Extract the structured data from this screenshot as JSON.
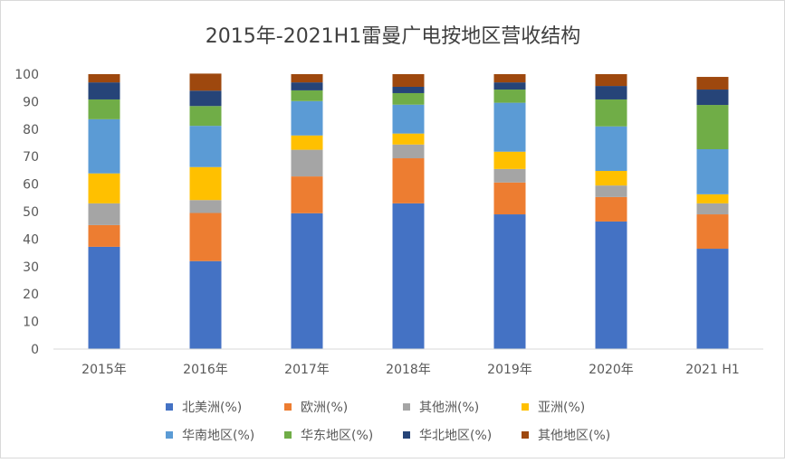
{
  "chart_data": {
    "type": "bar",
    "stacked": true,
    "title": "2015年-2021H1雷曼广电按地区营收结构",
    "xlabel": "",
    "ylabel": "",
    "ylim": [
      0,
      100
    ],
    "yticks": [
      0,
      10,
      20,
      30,
      40,
      50,
      60,
      70,
      80,
      90,
      100
    ],
    "grid": false,
    "legend_position": "bottom",
    "categories": [
      "2015年",
      "2016年",
      "2017年",
      "2018年",
      "2019年",
      "2020年",
      "2021 H1"
    ],
    "series": [
      {
        "name": "北美洲(%)",
        "color": "#4472c4",
        "values": [
          37.2,
          32.0,
          49.4,
          53.0,
          49.0,
          46.4,
          36.5
        ]
      },
      {
        "name": "欧洲(%)",
        "color": "#ed7d31",
        "values": [
          7.9,
          17.5,
          13.4,
          16.4,
          11.6,
          8.9,
          12.5
        ]
      },
      {
        "name": "其他洲(%)",
        "color": "#a5a5a5",
        "values": [
          7.9,
          4.7,
          9.7,
          5.0,
          4.9,
          4.2,
          4.0
        ]
      },
      {
        "name": "亚洲(%)",
        "color": "#ffc000",
        "values": [
          10.9,
          12.0,
          5.2,
          4.0,
          6.3,
          5.3,
          3.3
        ]
      },
      {
        "name": "华南地区(%)",
        "color": "#5b9bd5",
        "values": [
          19.7,
          15.0,
          12.5,
          10.5,
          17.8,
          16.2,
          16.4
        ]
      },
      {
        "name": "华东地区(%)",
        "color": "#70ad47",
        "values": [
          7.2,
          7.2,
          3.9,
          4.2,
          4.8,
          9.8,
          16.1
        ]
      },
      {
        "name": "华北地区(%)",
        "color": "#264478",
        "values": [
          6.2,
          5.6,
          2.9,
          2.3,
          2.6,
          4.9,
          5.6
        ]
      },
      {
        "name": "其他地区(%)",
        "color": "#9e480e",
        "values": [
          3.0,
          6.2,
          3.0,
          4.6,
          3.0,
          4.3,
          4.6
        ]
      }
    ]
  }
}
